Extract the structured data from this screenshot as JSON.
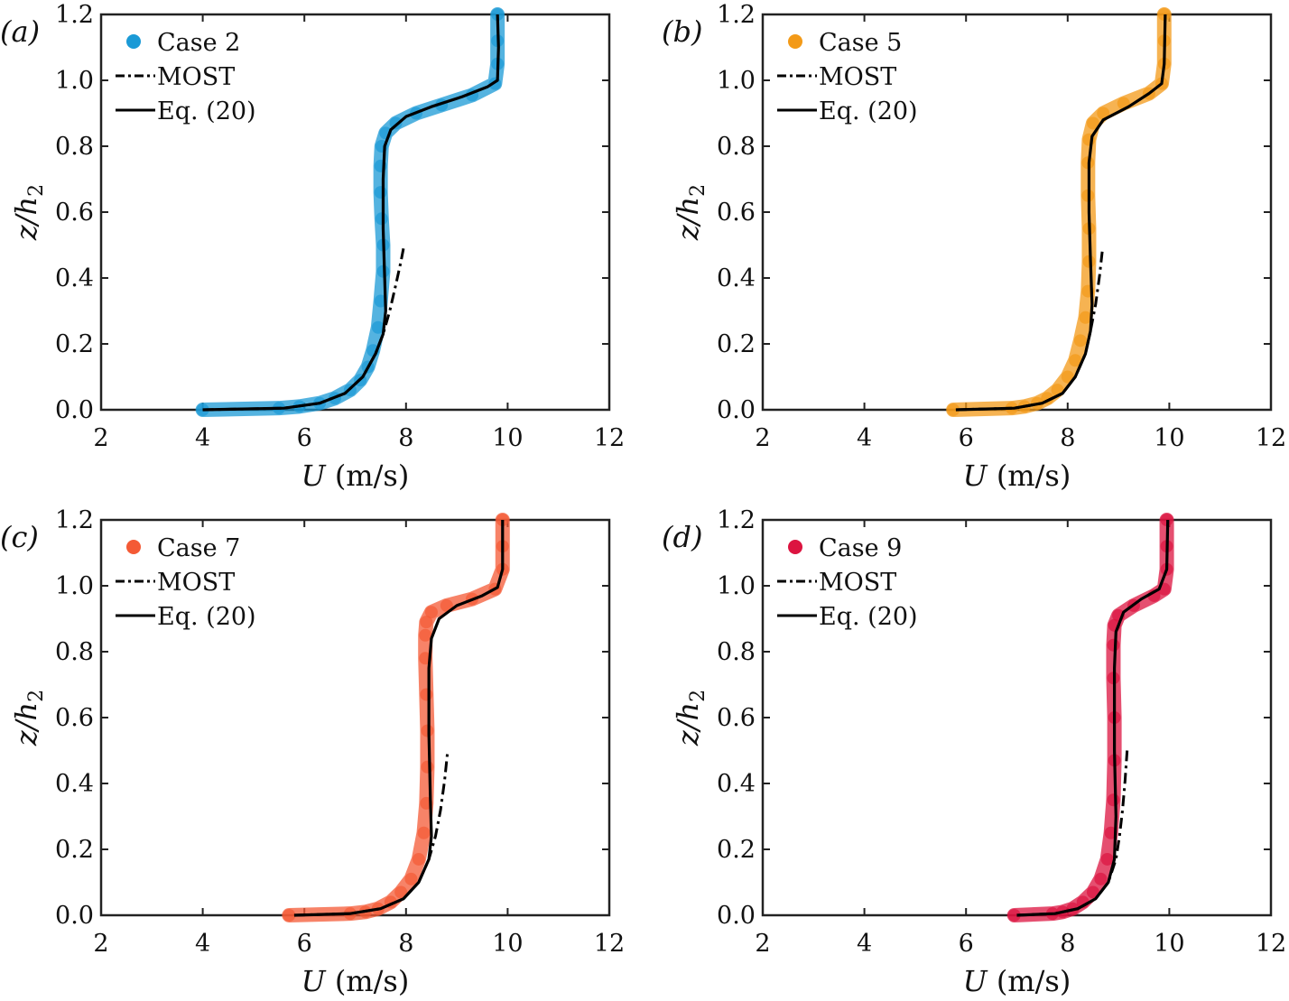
{
  "chart_data": [
    {
      "type": "scatter",
      "panel_label": "(a)",
      "xlabel": "U",
      "xunit": " (m/s)",
      "ylabel": "z/h2",
      "xlim": [
        2,
        12
      ],
      "ylim": [
        0,
        1.2
      ],
      "xticks": [
        "2",
        "4",
        "6",
        "8",
        "10",
        "12"
      ],
      "yticks": [
        "0.0",
        "0.2",
        "0.4",
        "0.6",
        "0.8",
        "1.0",
        "1.2"
      ],
      "legend_position": "top-left",
      "legend": [
        "Case 2",
        "MOST",
        "Eq. (20)"
      ],
      "color": "#1b9ad6",
      "series": [
        {
          "name": "Case 2",
          "kind": "markers",
          "x": [
            4.0,
            5.5,
            5.9,
            6.3,
            6.6,
            6.9,
            7.1,
            7.25,
            7.35,
            7.45,
            7.5,
            7.55,
            7.55,
            7.52,
            7.5,
            7.5,
            7.52,
            7.6,
            7.8,
            8.2,
            8.7,
            9.3,
            9.75,
            9.8,
            9.8,
            9.8
          ],
          "y": [
            0.0,
            0.005,
            0.01,
            0.02,
            0.035,
            0.06,
            0.09,
            0.13,
            0.18,
            0.25,
            0.33,
            0.42,
            0.5,
            0.58,
            0.66,
            0.74,
            0.8,
            0.84,
            0.87,
            0.9,
            0.925,
            0.955,
            0.99,
            1.05,
            1.12,
            1.2
          ]
        },
        {
          "name": "MOST",
          "kind": "dashdot",
          "x": [
            4.0,
            5.6,
            6.3,
            6.8,
            7.15,
            7.4,
            7.55,
            7.68,
            7.8,
            7.9,
            7.95
          ],
          "y": [
            0.0,
            0.005,
            0.02,
            0.05,
            0.1,
            0.17,
            0.23,
            0.3,
            0.38,
            0.45,
            0.49
          ]
        },
        {
          "name": "Eq. (20)",
          "kind": "solid",
          "x": [
            4.0,
            5.6,
            6.3,
            6.8,
            7.15,
            7.4,
            7.55,
            7.6,
            7.58,
            7.55,
            7.55,
            7.58,
            7.7,
            8.0,
            8.5,
            9.1,
            9.6,
            9.8,
            9.82,
            9.8
          ],
          "y": [
            0.0,
            0.005,
            0.02,
            0.05,
            0.1,
            0.17,
            0.23,
            0.3,
            0.4,
            0.55,
            0.7,
            0.8,
            0.85,
            0.89,
            0.92,
            0.95,
            0.98,
            1.0,
            1.1,
            1.2
          ]
        }
      ]
    },
    {
      "type": "scatter",
      "panel_label": "(b)",
      "xlabel": "U",
      "xunit": " (m/s)",
      "ylabel": "z/h2",
      "xlim": [
        2,
        12
      ],
      "ylim": [
        0,
        1.2
      ],
      "xticks": [
        "2",
        "4",
        "6",
        "8",
        "10",
        "12"
      ],
      "yticks": [
        "0.0",
        "0.2",
        "0.4",
        "0.6",
        "0.8",
        "1.0",
        "1.2"
      ],
      "legend_position": "top-left",
      "legend": [
        "Case 5",
        "MOST",
        "Eq. (20)"
      ],
      "color": "#f39a18",
      "series": [
        {
          "name": "Case 5",
          "kind": "markers",
          "x": [
            5.75,
            6.9,
            7.15,
            7.4,
            7.6,
            7.8,
            8.0,
            8.15,
            8.25,
            8.35,
            8.4,
            8.42,
            8.42,
            8.4,
            8.4,
            8.42,
            8.5,
            8.7,
            9.1,
            9.6,
            9.85,
            9.9,
            9.9,
            9.9
          ],
          "y": [
            0.0,
            0.005,
            0.01,
            0.02,
            0.035,
            0.06,
            0.1,
            0.15,
            0.21,
            0.28,
            0.36,
            0.45,
            0.55,
            0.65,
            0.75,
            0.82,
            0.87,
            0.9,
            0.93,
            0.96,
            0.99,
            1.05,
            1.12,
            1.2
          ]
        },
        {
          "name": "MOST",
          "kind": "dashdot",
          "x": [
            5.8,
            6.95,
            7.5,
            7.9,
            8.15,
            8.35,
            8.45,
            8.55,
            8.63,
            8.68
          ],
          "y": [
            0.0,
            0.005,
            0.02,
            0.05,
            0.1,
            0.17,
            0.24,
            0.32,
            0.41,
            0.48
          ]
        },
        {
          "name": "Eq. (20)",
          "kind": "solid",
          "x": [
            5.8,
            6.95,
            7.5,
            7.9,
            8.15,
            8.35,
            8.45,
            8.48,
            8.45,
            8.42,
            8.42,
            8.48,
            8.7,
            9.2,
            9.6,
            9.85,
            9.9,
            9.92
          ],
          "y": [
            0.0,
            0.005,
            0.02,
            0.05,
            0.1,
            0.17,
            0.24,
            0.32,
            0.45,
            0.6,
            0.75,
            0.83,
            0.88,
            0.92,
            0.96,
            0.99,
            1.05,
            1.2
          ]
        }
      ]
    },
    {
      "type": "scatter",
      "panel_label": "(c)",
      "xlabel": "U",
      "xunit": " (m/s)",
      "ylabel": "z/h2",
      "xlim": [
        2,
        12
      ],
      "ylim": [
        0,
        1.2
      ],
      "xticks": [
        "2",
        "4",
        "6",
        "8",
        "10",
        "12"
      ],
      "yticks": [
        "0.0",
        "0.2",
        "0.4",
        "0.6",
        "0.8",
        "1.0",
        "1.2"
      ],
      "legend_position": "top-left",
      "legend": [
        "Case 7",
        "MOST",
        "Eq. (20)"
      ],
      "color": "#f45a35",
      "series": [
        {
          "name": "Case 7",
          "kind": "markers",
          "x": [
            5.7,
            6.9,
            7.2,
            7.45,
            7.7,
            7.9,
            8.1,
            8.25,
            8.35,
            8.4,
            8.42,
            8.42,
            8.4,
            8.38,
            8.38,
            8.4,
            8.5,
            8.8,
            9.3,
            9.75,
            9.9,
            9.9,
            9.9
          ],
          "y": [
            0.0,
            0.005,
            0.01,
            0.02,
            0.04,
            0.07,
            0.11,
            0.17,
            0.25,
            0.34,
            0.45,
            0.56,
            0.67,
            0.78,
            0.85,
            0.89,
            0.92,
            0.94,
            0.96,
            0.99,
            1.05,
            1.12,
            1.2
          ]
        },
        {
          "name": "MOST",
          "kind": "dashdot",
          "x": [
            5.8,
            6.9,
            7.5,
            7.95,
            8.25,
            8.45,
            8.58,
            8.68,
            8.76,
            8.82
          ],
          "y": [
            0.0,
            0.005,
            0.02,
            0.05,
            0.1,
            0.17,
            0.24,
            0.32,
            0.41,
            0.5
          ]
        },
        {
          "name": "Eq. (20)",
          "kind": "solid",
          "x": [
            5.8,
            6.9,
            7.5,
            7.95,
            8.25,
            8.45,
            8.5,
            8.48,
            8.45,
            8.45,
            8.5,
            8.65,
            9.0,
            9.5,
            9.8,
            9.9,
            9.9
          ],
          "y": [
            0.0,
            0.005,
            0.02,
            0.05,
            0.1,
            0.17,
            0.24,
            0.35,
            0.55,
            0.75,
            0.84,
            0.9,
            0.94,
            0.97,
            0.995,
            1.05,
            1.2
          ]
        }
      ]
    },
    {
      "type": "scatter",
      "panel_label": "(d)",
      "xlabel": "U",
      "xunit": " (m/s)",
      "ylabel": "z/h2",
      "xlim": [
        2,
        12
      ],
      "ylim": [
        0,
        1.2
      ],
      "xticks": [
        "2",
        "4",
        "6",
        "8",
        "10",
        "12"
      ],
      "yticks": [
        "0.0",
        "0.2",
        "0.4",
        "0.6",
        "0.8",
        "1.0",
        "1.2"
      ],
      "legend_position": "top-left",
      "legend": [
        "Case 9",
        "MOST",
        "Eq. (20)"
      ],
      "color": "#dc1440",
      "series": [
        {
          "name": "Case 9",
          "kind": "markers",
          "x": [
            6.95,
            7.7,
            7.9,
            8.1,
            8.3,
            8.5,
            8.65,
            8.78,
            8.85,
            8.9,
            8.92,
            8.92,
            8.9,
            8.9,
            8.92,
            9.0,
            9.3,
            9.7,
            9.9,
            9.95,
            9.95,
            9.95
          ],
          "y": [
            0.0,
            0.005,
            0.01,
            0.02,
            0.04,
            0.07,
            0.11,
            0.17,
            0.25,
            0.35,
            0.47,
            0.6,
            0.72,
            0.82,
            0.88,
            0.91,
            0.94,
            0.97,
            0.99,
            1.05,
            1.12,
            1.2
          ]
        },
        {
          "name": "MOST",
          "kind": "dashdot",
          "x": [
            7.0,
            7.75,
            8.2,
            8.55,
            8.8,
            8.95,
            9.02,
            9.08,
            9.13,
            9.17
          ],
          "y": [
            0.0,
            0.005,
            0.02,
            0.05,
            0.1,
            0.17,
            0.24,
            0.32,
            0.41,
            0.5
          ]
        },
        {
          "name": "Eq. (20)",
          "kind": "solid",
          "x": [
            7.0,
            7.75,
            8.2,
            8.55,
            8.8,
            8.92,
            8.95,
            8.92,
            8.92,
            8.95,
            9.1,
            9.45,
            9.8,
            9.95,
            9.97
          ],
          "y": [
            0.0,
            0.005,
            0.02,
            0.05,
            0.1,
            0.17,
            0.3,
            0.5,
            0.75,
            0.86,
            0.92,
            0.96,
            0.99,
            1.05,
            1.2
          ]
        }
      ]
    }
  ]
}
